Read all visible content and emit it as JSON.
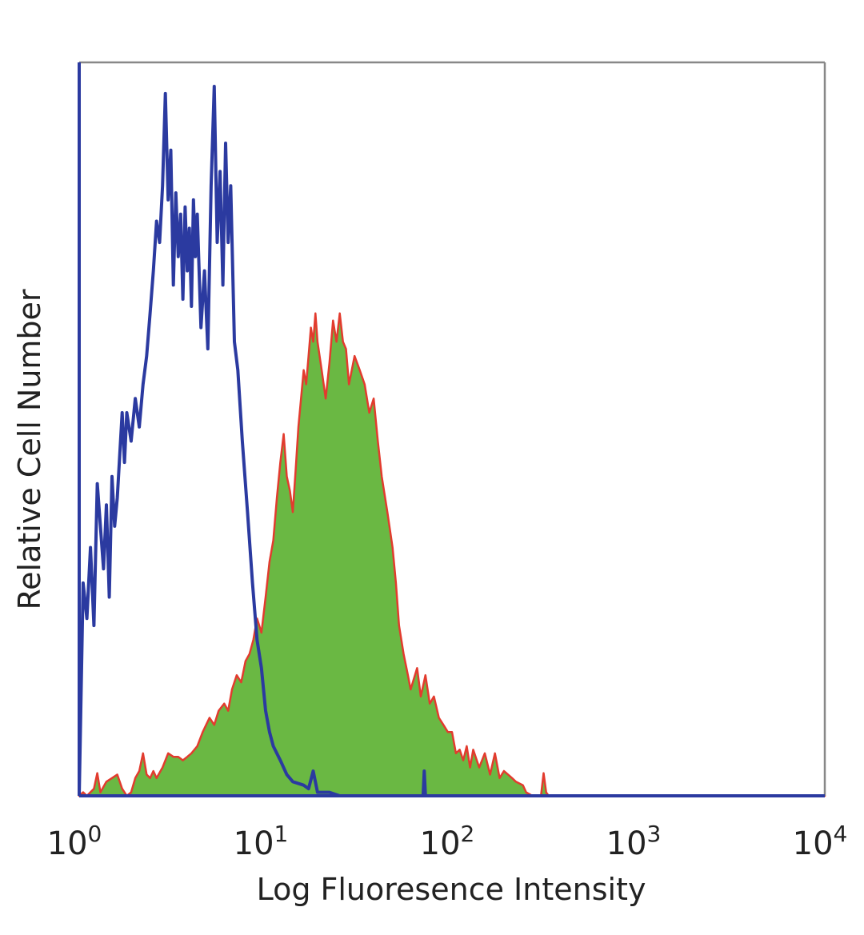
{
  "chart_data": {
    "type": "area",
    "xlabel": "Log Fluoresence Intensity",
    "ylabel": "Relative Cell Number",
    "x_scale": "log",
    "xlim": [
      1,
      10000
    ],
    "ylim": [
      0,
      100
    ],
    "grid": false,
    "x_ticks": [
      {
        "base": "10",
        "exp": "0"
      },
      {
        "base": "10",
        "exp": "1"
      },
      {
        "base": "10",
        "exp": "2"
      },
      {
        "base": "10",
        "exp": "3"
      },
      {
        "base": "10",
        "exp": "4"
      }
    ],
    "series": [
      {
        "style": "outline",
        "color": "#2b3aa0",
        "points": [
          [
            1.0,
            0
          ],
          [
            1.05,
            30
          ],
          [
            1.1,
            25
          ],
          [
            1.15,
            35
          ],
          [
            1.2,
            24
          ],
          [
            1.25,
            44
          ],
          [
            1.3,
            38
          ],
          [
            1.35,
            32
          ],
          [
            1.4,
            41
          ],
          [
            1.45,
            28
          ],
          [
            1.5,
            45
          ],
          [
            1.55,
            38
          ],
          [
            1.6,
            42
          ],
          [
            1.7,
            54
          ],
          [
            1.75,
            47
          ],
          [
            1.8,
            54
          ],
          [
            1.9,
            50
          ],
          [
            2.0,
            56
          ],
          [
            2.1,
            52
          ],
          [
            2.2,
            58
          ],
          [
            2.3,
            62
          ],
          [
            2.4,
            68
          ],
          [
            2.5,
            74
          ],
          [
            2.6,
            81
          ],
          [
            2.7,
            78
          ],
          [
            2.8,
            86
          ],
          [
            2.9,
            99
          ],
          [
            3.0,
            84
          ],
          [
            3.1,
            91
          ],
          [
            3.2,
            72
          ],
          [
            3.3,
            85
          ],
          [
            3.4,
            76
          ],
          [
            3.5,
            82
          ],
          [
            3.6,
            70
          ],
          [
            3.7,
            83
          ],
          [
            3.8,
            74
          ],
          [
            3.9,
            80
          ],
          [
            4.0,
            69
          ],
          [
            4.1,
            84
          ],
          [
            4.2,
            76
          ],
          [
            4.3,
            82
          ],
          [
            4.5,
            66
          ],
          [
            4.7,
            74
          ],
          [
            4.9,
            63
          ],
          [
            5.1,
            86
          ],
          [
            5.3,
            100
          ],
          [
            5.5,
            78
          ],
          [
            5.7,
            88
          ],
          [
            5.9,
            72
          ],
          [
            6.1,
            92
          ],
          [
            6.3,
            78
          ],
          [
            6.5,
            86
          ],
          [
            6.8,
            64
          ],
          [
            7.1,
            60
          ],
          [
            7.5,
            50
          ],
          [
            8.0,
            40
          ],
          [
            8.5,
            30
          ],
          [
            9.0,
            22
          ],
          [
            9.5,
            18
          ],
          [
            10.0,
            12
          ],
          [
            10.5,
            9
          ],
          [
            11.0,
            7
          ],
          [
            12.0,
            5
          ],
          [
            13.0,
            3
          ],
          [
            14.0,
            2
          ],
          [
            16.0,
            1.5
          ],
          [
            17.0,
            1
          ],
          [
            18.0,
            3.5
          ],
          [
            19.0,
            0.5
          ],
          [
            22.0,
            0.5
          ],
          [
            25.0,
            0
          ],
          [
            70.0,
            0
          ],
          [
            71.0,
            3.5
          ],
          [
            72.0,
            0
          ],
          [
            100.0,
            0
          ],
          [
            10000.0,
            0
          ]
        ]
      },
      {
        "style": "filled",
        "color": "#6ab843",
        "edge_color": "#e23b2e",
        "points": [
          [
            1.0,
            0
          ],
          [
            1.05,
            0.5
          ],
          [
            1.1,
            0
          ],
          [
            1.2,
            1
          ],
          [
            1.25,
            3.2
          ],
          [
            1.3,
            0.5
          ],
          [
            1.4,
            2
          ],
          [
            1.5,
            2.5
          ],
          [
            1.6,
            3
          ],
          [
            1.7,
            1
          ],
          [
            1.8,
            0
          ],
          [
            1.9,
            0.5
          ],
          [
            2.0,
            2.5
          ],
          [
            2.1,
            3.5
          ],
          [
            2.2,
            6
          ],
          [
            2.3,
            3
          ],
          [
            2.4,
            2.5
          ],
          [
            2.5,
            3.5
          ],
          [
            2.6,
            2.5
          ],
          [
            2.8,
            4
          ],
          [
            3.0,
            6
          ],
          [
            3.2,
            5.5
          ],
          [
            3.4,
            5.5
          ],
          [
            3.6,
            5
          ],
          [
            3.8,
            5.5
          ],
          [
            4.0,
            6
          ],
          [
            4.3,
            7
          ],
          [
            4.6,
            9
          ],
          [
            5.0,
            11
          ],
          [
            5.3,
            10
          ],
          [
            5.6,
            12
          ],
          [
            6.0,
            13
          ],
          [
            6.3,
            12
          ],
          [
            6.6,
            15
          ],
          [
            7.0,
            17
          ],
          [
            7.4,
            16
          ],
          [
            7.8,
            19
          ],
          [
            8.2,
            20
          ],
          [
            8.6,
            22
          ],
          [
            9.0,
            25
          ],
          [
            9.5,
            23
          ],
          [
            10.0,
            28
          ],
          [
            10.5,
            33
          ],
          [
            11.0,
            36
          ],
          [
            11.5,
            42
          ],
          [
            12.0,
            47
          ],
          [
            12.5,
            51
          ],
          [
            13.0,
            45
          ],
          [
            13.5,
            43
          ],
          [
            14.0,
            40
          ],
          [
            14.5,
            46
          ],
          [
            15.0,
            52
          ],
          [
            15.5,
            56
          ],
          [
            16.0,
            60
          ],
          [
            16.5,
            58
          ],
          [
            17.0,
            62
          ],
          [
            17.5,
            66
          ],
          [
            18.0,
            64
          ],
          [
            18.5,
            68
          ],
          [
            19.0,
            64
          ],
          [
            20.0,
            60
          ],
          [
            21.0,
            56
          ],
          [
            22.0,
            61
          ],
          [
            23.0,
            67
          ],
          [
            24.0,
            64
          ],
          [
            25.0,
            68
          ],
          [
            26.0,
            64
          ],
          [
            27.0,
            63
          ],
          [
            28.0,
            58
          ],
          [
            30.0,
            62
          ],
          [
            32.0,
            60
          ],
          [
            34.0,
            58
          ],
          [
            36.0,
            54
          ],
          [
            38.0,
            56
          ],
          [
            40.0,
            50
          ],
          [
            42.0,
            45
          ],
          [
            45.0,
            40
          ],
          [
            48.0,
            35
          ],
          [
            50.0,
            30
          ],
          [
            52.0,
            24
          ],
          [
            55.0,
            20
          ],
          [
            58.0,
            17
          ],
          [
            60.0,
            15
          ],
          [
            65.0,
            18
          ],
          [
            68.0,
            14
          ],
          [
            72.0,
            17
          ],
          [
            76.0,
            13
          ],
          [
            80.0,
            14
          ],
          [
            85.0,
            11
          ],
          [
            90.0,
            10
          ],
          [
            95.0,
            9
          ],
          [
            100.0,
            9
          ],
          [
            105.0,
            6
          ],
          [
            110.0,
            6.5
          ],
          [
            115.0,
            5
          ],
          [
            120.0,
            7
          ],
          [
            125.0,
            4
          ],
          [
            130.0,
            6.5
          ],
          [
            140.0,
            4
          ],
          [
            150.0,
            6
          ],
          [
            160.0,
            3
          ],
          [
            170.0,
            6
          ],
          [
            180.0,
            2.5
          ],
          [
            190.0,
            3.5
          ],
          [
            200.0,
            3
          ],
          [
            210.0,
            2.5
          ],
          [
            220.0,
            2
          ],
          [
            240.0,
            1.5
          ],
          [
            250.0,
            0.5
          ],
          [
            270.0,
            0
          ],
          [
            300.0,
            0
          ],
          [
            310.0,
            3.2
          ],
          [
            320.0,
            0.5
          ],
          [
            330.0,
            0
          ],
          [
            10000.0,
            0
          ]
        ]
      }
    ]
  },
  "colors": {
    "frame": "#888888",
    "left_axis": "#2b3aa0",
    "bottom_axis": "#2b3aa0"
  }
}
